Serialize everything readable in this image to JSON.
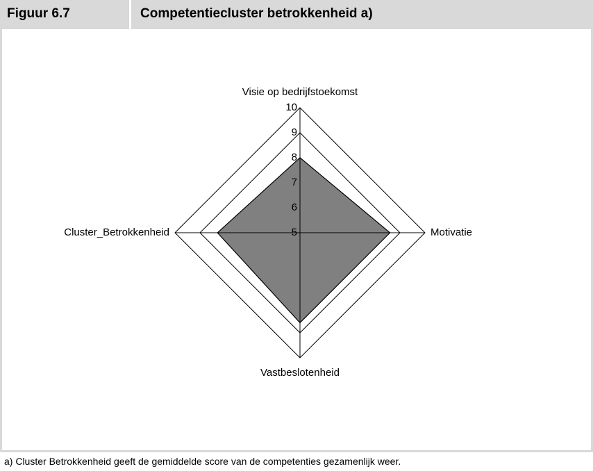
{
  "figure": {
    "label": "Figuur 6.7",
    "title": "Competentiecluster betrokkenheid a)",
    "footnote": "a) Cluster Betrokkenheid geeft de gemiddelde score van de competenties gezamenlijk weer."
  },
  "chart_data": {
    "type": "radar",
    "categories": [
      "Visie op bedrijfstoekomst",
      "Motivatie",
      "Vastbeslotenheid",
      "Cluster_Betrokkenheid"
    ],
    "values": [
      8.0,
      8.6,
      8.6,
      8.3
    ],
    "color": "#808080",
    "rlim": [
      5,
      10
    ],
    "rticks": [
      5,
      6,
      7,
      8,
      9,
      10
    ]
  }
}
